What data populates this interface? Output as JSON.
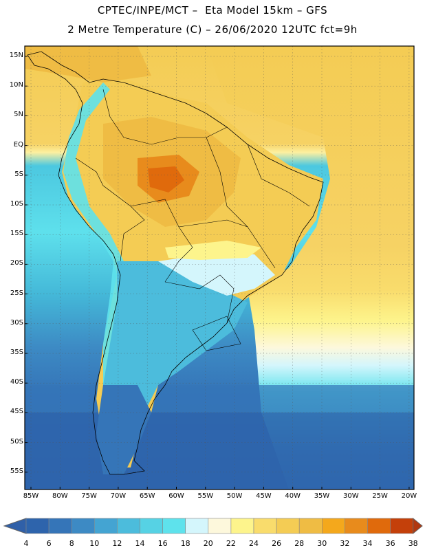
{
  "header": {
    "line1": "CPTEC/INPE/MCT –  Eta Model 15km – GFS",
    "line2": "2 Metre Temperature (C) – 26/06/2020 12UTC fct=9h"
  },
  "map": {
    "lat_labels": [
      "15N",
      "10N",
      "5N",
      "EQ",
      "5S",
      "10S",
      "15S",
      "20S",
      "25S",
      "30S",
      "35S",
      "40S",
      "45S",
      "50S",
      "55S"
    ],
    "lon_labels": [
      "85W",
      "80W",
      "75W",
      "70W",
      "65W",
      "60W",
      "55W",
      "50W",
      "45W",
      "40W",
      "35W",
      "30W",
      "25W",
      "20W"
    ]
  },
  "legend": {
    "labels": [
      "4",
      "6",
      "8",
      "10",
      "12",
      "14",
      "16",
      "18",
      "20",
      "22",
      "24",
      "26",
      "28",
      "30",
      "32",
      "34",
      "36",
      "38"
    ],
    "low_color": "#3060a8",
    "high_color": "#b03810",
    "colors": [
      "#2e64ac",
      "#3575b8",
      "#3d8ac4",
      "#44a4d2",
      "#4cbcdc",
      "#56d2e4",
      "#5ee2ec",
      "#d4f6fc",
      "#fdf8dc",
      "#fdf48c",
      "#f9dc6c",
      "#f4cc54",
      "#efbc44",
      "#f4a81c",
      "#e88b1c",
      "#e06a0c",
      "#c4400a"
    ]
  }
}
